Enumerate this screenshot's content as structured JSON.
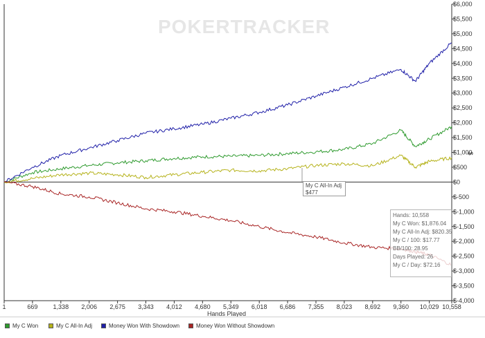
{
  "watermark": "POKERTRACKER",
  "tooltip": {
    "series": "My C All-In Adj",
    "value": "$477"
  },
  "stats": [
    "Hands: 10,558",
    "My C Won: $1,876.04",
    "My C All-In Adj: $820.35",
    "My C / 100: $17.77",
    "BB/100: 28.95",
    "Days Played: 26",
    "My C / Day: $72.16"
  ],
  "chart_data": {
    "type": "line",
    "xlabel": "Hands Played",
    "ylabel": "$",
    "xlim": [
      1,
      10558
    ],
    "ylim": [
      -4000,
      6000
    ],
    "x_ticks": [
      "1",
      "669",
      "1,338",
      "2,006",
      "2,675",
      "3,343",
      "4,012",
      "4,680",
      "5,349",
      "6,018",
      "6,686",
      "7,355",
      "8,023",
      "8,692",
      "9,360",
      "10,029",
      "10,558"
    ],
    "y_ticks": [
      "$6,000",
      "$5,500",
      "$5,000",
      "$4,500",
      "$4,000",
      "$3,500",
      "$3,000",
      "$2,500",
      "$2,000",
      "$1,500",
      "$1,000",
      "$500",
      "$0",
      "$-500",
      "$-1,000",
      "$-1,500",
      "$-2,000",
      "$-2,500",
      "$-3,000",
      "$-3,500",
      "$-4,000"
    ],
    "grid": false,
    "legend_position": "bottom",
    "x": [
      1,
      669,
      1338,
      2006,
      2675,
      3343,
      4012,
      4680,
      5349,
      6018,
      6686,
      7355,
      8023,
      8692,
      9360,
      9700,
      10029,
      10558
    ],
    "series": [
      {
        "name": "My C Won",
        "color": "#2e9a2e",
        "values": [
          0,
          320,
          450,
          560,
          650,
          720,
          800,
          850,
          870,
          900,
          960,
          1020,
          1100,
          1300,
          1750,
          1200,
          1450,
          1876
        ]
      },
      {
        "name": "My C All-In Adj",
        "color": "#b5b21a",
        "values": [
          0,
          120,
          250,
          300,
          250,
          160,
          250,
          330,
          400,
          380,
          450,
          560,
          620,
          550,
          900,
          500,
          700,
          820
        ]
      },
      {
        "name": "Money Won With Showdown",
        "color": "#1f1fa8",
        "values": [
          0,
          500,
          900,
          1150,
          1400,
          1650,
          1800,
          1950,
          2150,
          2350,
          2600,
          2900,
          3200,
          3500,
          3800,
          3400,
          4000,
          4700
        ]
      },
      {
        "name": "Money Won Without Showdown",
        "color": "#a82424",
        "values": [
          0,
          -150,
          -400,
          -500,
          -700,
          -900,
          -1000,
          -1150,
          -1300,
          -1500,
          -1700,
          -1850,
          -2050,
          -2200,
          -2250,
          -2350,
          -2450,
          -2800
        ]
      }
    ]
  }
}
